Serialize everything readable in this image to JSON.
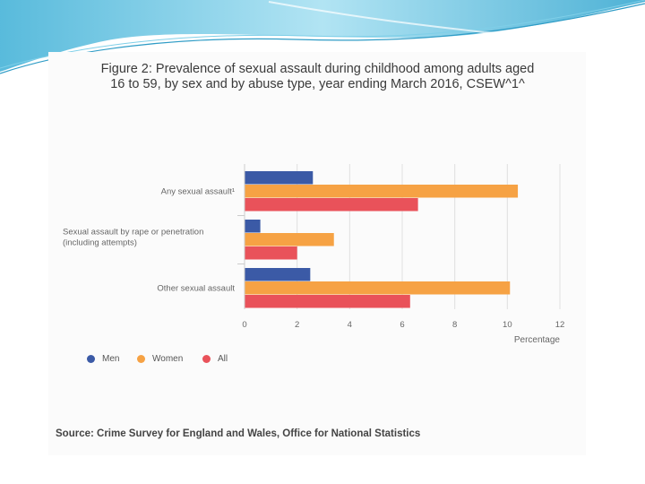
{
  "figure": {
    "title_line1": "Figure 2: Prevalence of sexual assault during childhood among adults aged",
    "title_line2": "16 to 59, by sex and by abuse type, year ending March 2016, CSEW^1^",
    "source": "Source: Crime Survey for England and Wales, Office for National Statistics"
  },
  "chart_data": {
    "type": "bar",
    "orientation": "horizontal",
    "categories": [
      {
        "line1": "Any sexual assault¹",
        "line2": ""
      },
      {
        "line1": "Sexual assault by rape or penetration",
        "line2": "(including attempts)"
      },
      {
        "line1": "Other sexual assault",
        "line2": ""
      }
    ],
    "series": [
      {
        "name": "Men",
        "color": "#3b5aa6",
        "values": [
          2.6,
          0.6,
          2.5
        ]
      },
      {
        "name": "Women",
        "color": "#f6a244",
        "values": [
          10.4,
          3.4,
          10.1
        ]
      },
      {
        "name": "All",
        "color": "#e9525a",
        "values": [
          6.6,
          2.0,
          6.3
        ]
      }
    ],
    "xlabel": "Percentage",
    "xlim": [
      0,
      12
    ],
    "xticks": [
      0,
      2,
      4,
      6,
      8,
      10,
      12
    ],
    "grid": true,
    "legend_position": "bottom-left"
  },
  "colors": {
    "banner_light": "#b9e6f4",
    "banner_dark": "#39a8d0",
    "grid": "#e0e0e0"
  }
}
